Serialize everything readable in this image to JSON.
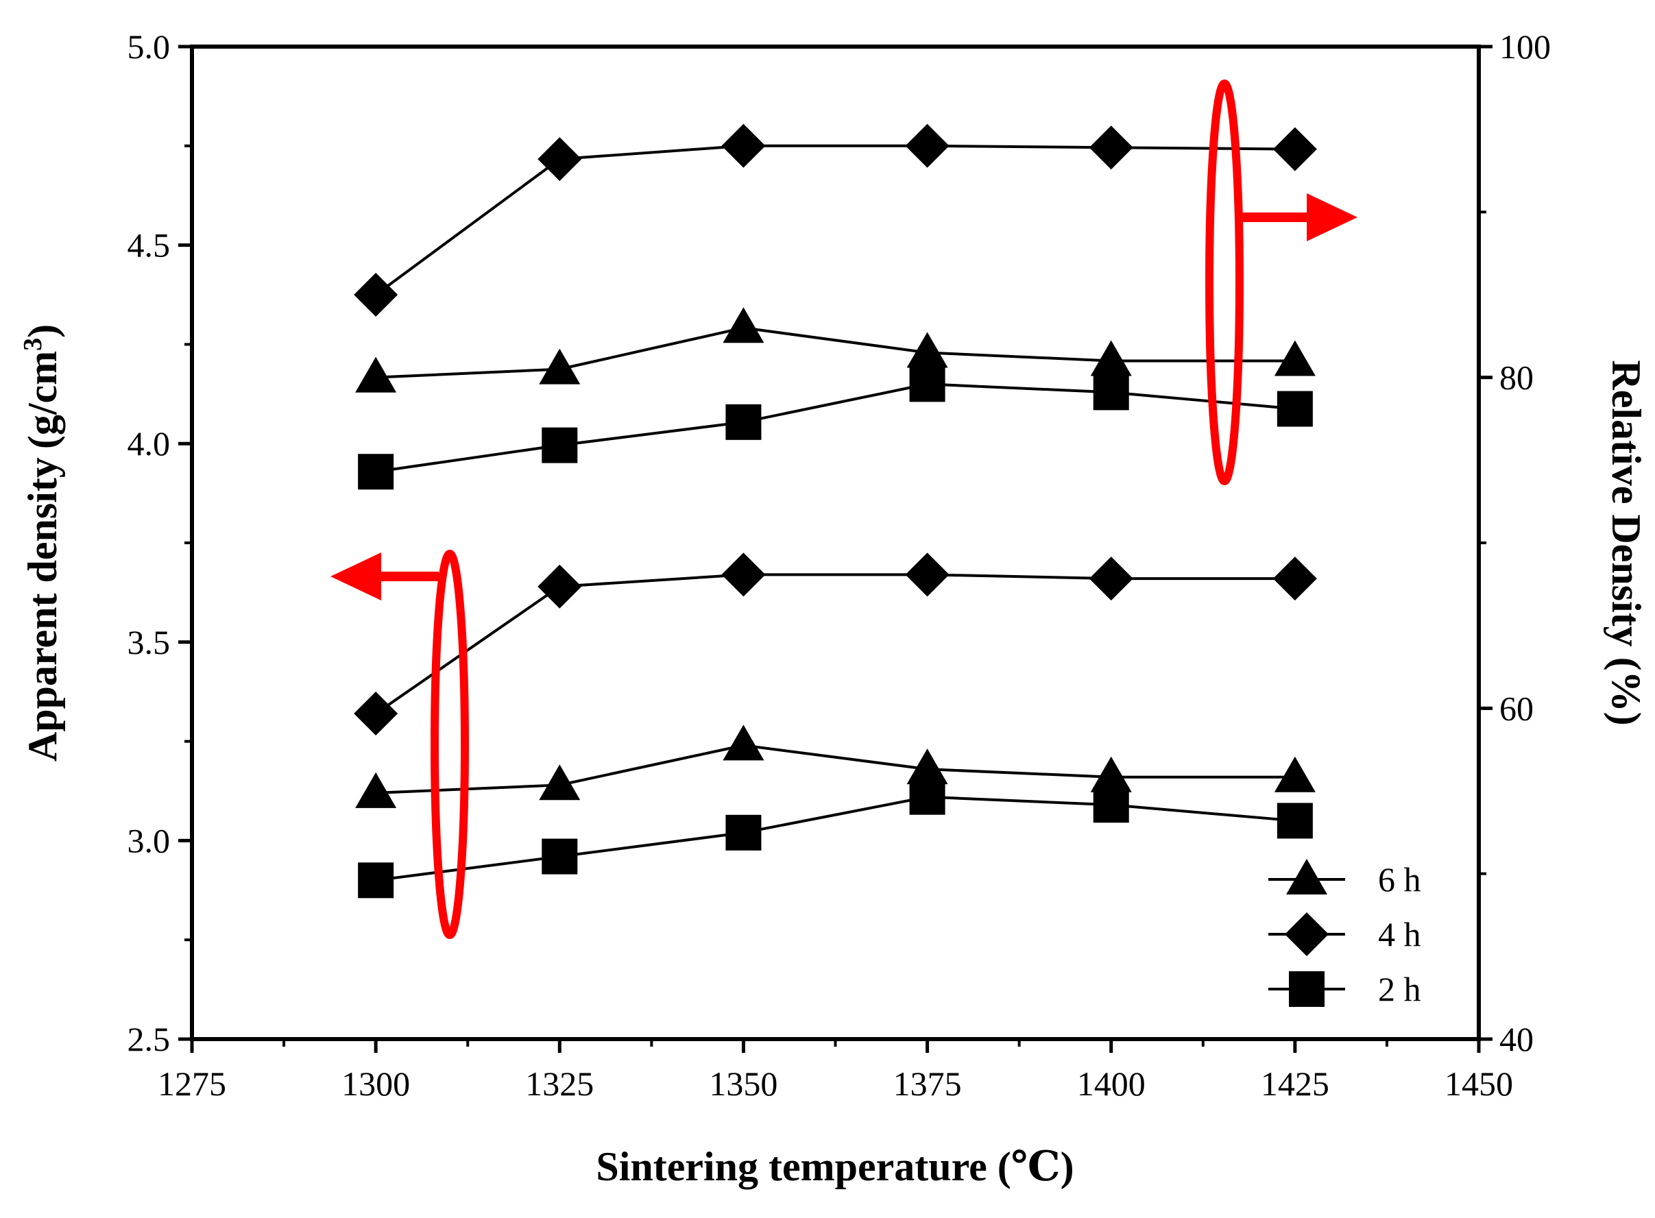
{
  "chart_data": {
    "type": "line",
    "title": "",
    "xlabel": "Sintering temperature (℃)",
    "ylabel_left": "Apparent density (g/cm³)",
    "ylabel_left_main": "Apparent density",
    "ylabel_left_unit_open": "(g/cm",
    "ylabel_left_unit_sup": "3",
    "ylabel_left_unit_close": ")",
    "ylabel_right": "Relative Density (%)",
    "xlim": [
      1275,
      1450
    ],
    "xticks": [
      "1275",
      "1300",
      "1325",
      "1350",
      "1375",
      "1400",
      "1425",
      "1450"
    ],
    "ylim_left": [
      2.5,
      5.0
    ],
    "yticks_left": [
      "2.5",
      "3.0",
      "3.5",
      "4.0",
      "4.5",
      "5.0"
    ],
    "ylim_right": [
      40,
      100
    ],
    "yticks_right": [
      "40",
      "60",
      "80",
      "100"
    ],
    "x": [
      1300,
      1325,
      1350,
      1375,
      1400,
      1425
    ],
    "series": [
      {
        "name": "6 h",
        "marker": "triangle",
        "axis": "left",
        "values": [
          3.12,
          3.14,
          3.24,
          3.18,
          3.16,
          3.16
        ]
      },
      {
        "name": "4 h",
        "marker": "diamond",
        "axis": "left",
        "values": [
          3.32,
          3.64,
          3.67,
          3.67,
          3.66,
          3.66
        ]
      },
      {
        "name": "2 h",
        "marker": "square",
        "axis": "left",
        "values": [
          2.9,
          2.96,
          3.02,
          3.11,
          3.09,
          3.05
        ]
      },
      {
        "name": "6 h",
        "marker": "triangle",
        "axis": "right",
        "values": [
          80.0,
          80.5,
          83.0,
          81.5,
          81.0,
          81.0
        ]
      },
      {
        "name": "4 h",
        "marker": "diamond",
        "axis": "right",
        "values": [
          85.0,
          93.2,
          94.0,
          94.0,
          93.9,
          93.8
        ]
      },
      {
        "name": "2 h",
        "marker": "square",
        "axis": "right",
        "values": [
          74.3,
          75.9,
          77.3,
          79.6,
          79.1,
          78.1
        ]
      }
    ],
    "legend": [
      {
        "label": "6 h",
        "marker": "triangle"
      },
      {
        "label": "4 h",
        "marker": "diamond"
      },
      {
        "label": "2 h",
        "marker": "square"
      }
    ],
    "legend_position": "bottom-right",
    "annotations": [
      {
        "type": "ellipse-arrow",
        "direction": "left",
        "meaning": "lower group of curves uses left axis",
        "color": "#ff0000"
      },
      {
        "type": "ellipse-arrow",
        "direction": "right",
        "meaning": "upper group of curves uses right axis",
        "color": "#ff0000"
      }
    ],
    "colors": {
      "line": "#000000",
      "annotation": "#ff0000"
    }
  }
}
